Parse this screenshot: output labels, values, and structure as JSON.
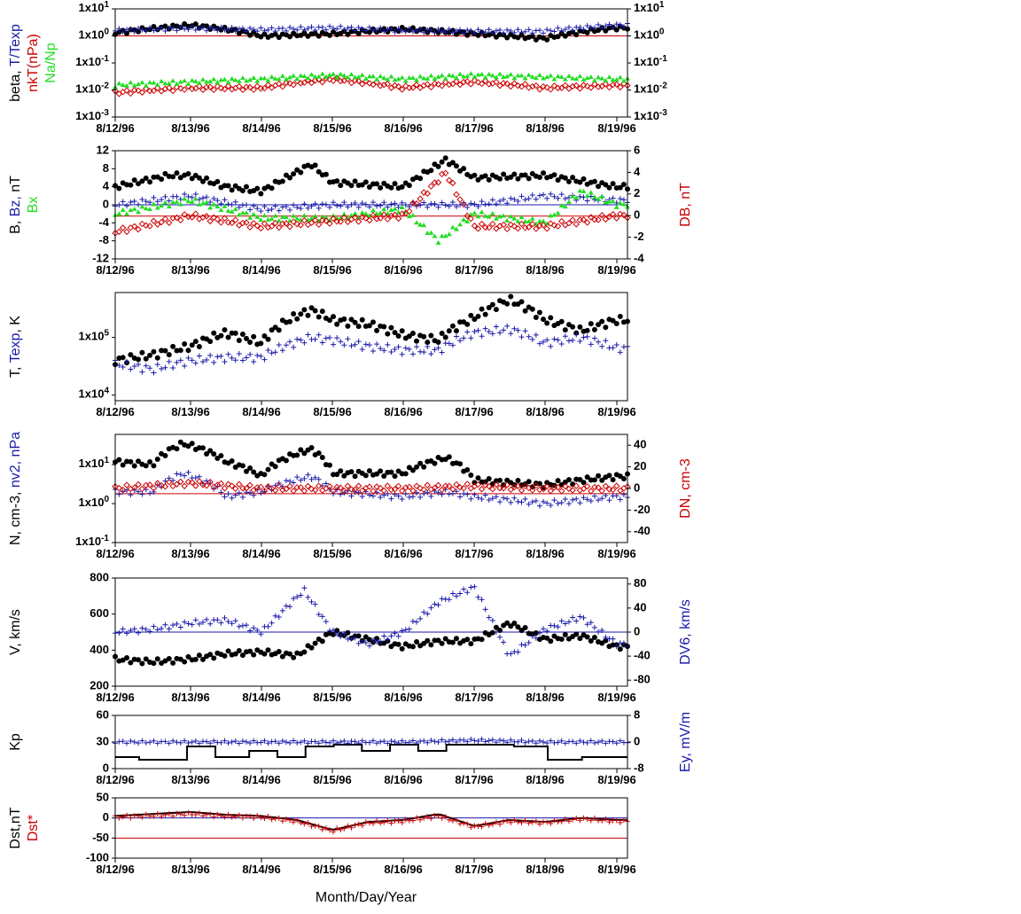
{
  "x_tick_labels": [
    "8/12/96",
    "8/13/96",
    "8/14/96",
    "8/15/96",
    "8/16/96",
    "8/17/96",
    "8/18/96",
    "8/19/96"
  ],
  "x_axis_title": "Month/Day/Year",
  "colors": {
    "black": "#000000",
    "blue": "#1a1aaa",
    "red": "#cc0000",
    "green": "#22dd22",
    "axis": "#000000"
  },
  "chart_data": [
    {
      "type": "scatter",
      "panel": "plasma beta",
      "y_scale": "log",
      "ylim": [
        0.001,
        10
      ],
      "left_ticks": [
        "1x10-3",
        "1x10-2",
        "1x10-1",
        "1x100",
        "1x101"
      ],
      "right_ticks": [
        "1x10-3",
        "1x10-2",
        "1x10-1",
        "1x100",
        "1x101"
      ],
      "left_label_parts": [
        {
          "text": "beta, ",
          "color": "black"
        },
        {
          "text": "T/Texp",
          "color": "blue"
        }
      ],
      "left_label2_parts": [
        {
          "text": "nkT(nPa)",
          "color": "red"
        }
      ],
      "left_label3_parts": [
        {
          "text": "Na/Np",
          "color": "green"
        }
      ],
      "reference_lines": [
        {
          "y": 1.0,
          "color": "red"
        }
      ],
      "series": [
        {
          "name": "beta",
          "marker": "dot",
          "color": "black",
          "x_days": [
            0,
            1,
            2,
            3,
            4,
            5,
            6,
            7
          ],
          "values": [
            1.3,
            2.5,
            1.0,
            1.2,
            1.8,
            1.2,
            0.8,
            2.0
          ]
        },
        {
          "name": "T/Texp",
          "marker": "plus",
          "color": "blue",
          "x_days": [
            0,
            1,
            2,
            3,
            4,
            5,
            6,
            7
          ],
          "values": [
            1.6,
            1.9,
            1.7,
            2.0,
            1.6,
            1.5,
            1.5,
            2.5
          ]
        },
        {
          "name": "nkT(nPa)",
          "marker": "diamond",
          "color": "red",
          "x_days": [
            0,
            1,
            2,
            3,
            4,
            5,
            6,
            7
          ],
          "values": [
            0.008,
            0.012,
            0.012,
            0.025,
            0.012,
            0.02,
            0.012,
            0.015
          ]
        },
        {
          "name": "Na/Np",
          "marker": "triangle",
          "color": "green",
          "x_days": [
            0,
            1,
            2,
            3,
            4,
            5,
            6,
            7
          ],
          "values": [
            0.015,
            0.02,
            0.025,
            0.035,
            0.025,
            0.035,
            0.03,
            0.025
          ]
        }
      ]
    },
    {
      "type": "scatter",
      "panel": "magnetic field",
      "ylim": [
        -12,
        12
      ],
      "left_ticks": [
        "-12",
        "-8",
        "-4",
        "0",
        "4",
        "8",
        "12"
      ],
      "right_ylim": [
        -4,
        6
      ],
      "right_ticks": [
        "-4",
        "-2",
        "0",
        "2",
        "4",
        "6"
      ],
      "left_label_parts": [
        {
          "text": "B, ",
          "color": "black"
        },
        {
          "text": "Bz, ",
          "color": "blue"
        },
        {
          "text": "nT",
          "color": "black"
        }
      ],
      "left_label2_parts": [
        {
          "text": "Bx",
          "color": "green"
        }
      ],
      "right_label_parts": [
        {
          "text": "DB, nT",
          "color": "red"
        }
      ],
      "reference_lines": [
        {
          "y": 0,
          "color": "blue"
        },
        {
          "y": -2.5,
          "color": "red"
        }
      ],
      "series": [
        {
          "name": "B",
          "marker": "dot",
          "color": "black",
          "x_days": [
            0,
            0.7,
            1,
            1.5,
            2,
            2.7,
            3,
            4,
            4.6,
            5,
            6,
            7
          ],
          "values": [
            4,
            6.5,
            6.5,
            4,
            3,
            9,
            5,
            4,
            10,
            6,
            6.5,
            4
          ]
        },
        {
          "name": "Bz",
          "marker": "plus",
          "color": "blue",
          "x_days": [
            0,
            1,
            2,
            3,
            4,
            5,
            6,
            7
          ],
          "values": [
            0,
            2,
            -1,
            0,
            0,
            0,
            2,
            1
          ]
        },
        {
          "name": "Bx",
          "marker": "triangle",
          "color": "green",
          "x_days": [
            0,
            1,
            2,
            3,
            4,
            4.5,
            5,
            6,
            6.5,
            7
          ],
          "values": [
            -2,
            1,
            -3,
            -3,
            -1,
            -8,
            -2,
            -4,
            3,
            0
          ]
        },
        {
          "name": "DB",
          "marker": "diamond",
          "color": "red",
          "axis": "right",
          "x_days": [
            0,
            1,
            2,
            3,
            4,
            4.6,
            5,
            6,
            7
          ],
          "values": [
            -1.5,
            0,
            -1,
            -0.5,
            0,
            4,
            -1,
            -1,
            0
          ]
        }
      ]
    },
    {
      "type": "scatter",
      "panel": "temperature",
      "y_scale": "log",
      "ylim": [
        8000,
        600000
      ],
      "left_ticks": [
        "1x104",
        "1x105"
      ],
      "left_label_parts": [
        {
          "text": "T, ",
          "color": "black"
        },
        {
          "text": "Texp",
          "color": "blue"
        },
        {
          "text": ", K",
          "color": "black"
        }
      ],
      "series": [
        {
          "name": "T",
          "marker": "dot",
          "color": "black",
          "x_days": [
            0,
            0.5,
            1,
            1.5,
            2,
            2.7,
            3,
            3.5,
            4,
            4.5,
            5,
            5.5,
            6,
            6.5,
            7
          ],
          "values": [
            40000,
            50000,
            70000,
            120000,
            80000,
            300000,
            200000,
            170000,
            110000,
            90000,
            220000,
            450000,
            200000,
            130000,
            200000
          ]
        },
        {
          "name": "Texp",
          "marker": "plus",
          "color": "blue",
          "x_days": [
            0,
            0.5,
            1,
            1.5,
            2,
            2.7,
            3,
            3.5,
            4,
            4.5,
            5,
            5.5,
            6,
            6.5,
            7
          ],
          "values": [
            35000,
            28000,
            40000,
            45000,
            45000,
            100000,
            90000,
            70000,
            60000,
            60000,
            120000,
            140000,
            80000,
            100000,
            65000
          ]
        }
      ]
    },
    {
      "type": "scatter",
      "panel": "density",
      "y_scale": "log",
      "ylim": [
        0.1,
        60
      ],
      "left_ticks": [
        "1x10-1",
        "1x100",
        "1x101"
      ],
      "right_ylim": [
        -50,
        50
      ],
      "right_ticks": [
        "-40",
        "-20",
        "0",
        "20",
        "40"
      ],
      "left_label_parts": [
        {
          "text": "N, cm-3, ",
          "color": "black"
        },
        {
          "text": "nv2, nPa",
          "color": "blue"
        }
      ],
      "right_label_parts": [
        {
          "text": "DN, cm-3",
          "color": "red"
        }
      ],
      "reference_lines": [
        {
          "y": 1.8,
          "color": "red"
        }
      ],
      "series": [
        {
          "name": "N",
          "marker": "dot",
          "color": "black",
          "x_days": [
            0,
            0.5,
            0.9,
            1.5,
            2,
            2.7,
            3,
            4,
            4.6,
            5,
            6,
            7
          ],
          "values": [
            12,
            10,
            35,
            12,
            5,
            25,
            6,
            6,
            15,
            4,
            3,
            5
          ]
        },
        {
          "name": "nv2",
          "marker": "plus",
          "color": "blue",
          "x_days": [
            0,
            0.5,
            0.9,
            1.5,
            2,
            2.7,
            3,
            4,
            4.6,
            5,
            6,
            7
          ],
          "values": [
            2,
            2,
            6,
            1.5,
            2,
            5,
            2,
            1.5,
            2,
            1.5,
            1,
            1.5
          ]
        },
        {
          "name": "DN",
          "marker": "diamond",
          "color": "red",
          "axis": "right",
          "x_days": [
            0,
            1,
            2,
            3,
            4,
            5,
            6,
            7
          ],
          "values": [
            0,
            5,
            0,
            0,
            0,
            2,
            0,
            0
          ]
        }
      ]
    },
    {
      "type": "scatter",
      "panel": "velocity",
      "ylim": [
        200,
        800
      ],
      "left_ticks": [
        "200",
        "400",
        "600",
        "800"
      ],
      "right_ylim": [
        -90,
        90
      ],
      "right_ticks": [
        "-80",
        "-40",
        "0",
        "40",
        "80"
      ],
      "left_label_parts": [
        {
          "text": "V, km/s",
          "color": "black"
        }
      ],
      "right_label_parts": [
        {
          "text": "DV6, km/s",
          "color": "blue"
        }
      ],
      "reference_lines": [
        {
          "y": 500,
          "color": "blue"
        }
      ],
      "series": [
        {
          "name": "V",
          "marker": "dot",
          "color": "black",
          "x_days": [
            0,
            0.5,
            1,
            1.5,
            2,
            2.5,
            3,
            3.5,
            4,
            4.5,
            5,
            5.5,
            6,
            6.5,
            7
          ],
          "values": [
            350,
            335,
            350,
            380,
            390,
            370,
            500,
            460,
            420,
            450,
            450,
            550,
            460,
            480,
            420
          ]
        },
        {
          "name": "DV6",
          "marker": "plus",
          "color": "blue",
          "axis": "right",
          "x_days": [
            0,
            0.5,
            1,
            1.5,
            2,
            2.6,
            3,
            3.5,
            4,
            4.5,
            5,
            5.5,
            6,
            6.5,
            7
          ],
          "values": [
            0,
            5,
            15,
            20,
            0,
            70,
            0,
            -20,
            0,
            50,
            75,
            -40,
            5,
            25,
            -20
          ]
        }
      ]
    },
    {
      "type": "line",
      "panel": "geomagnetic Kp",
      "ylim": [
        0,
        60
      ],
      "left_ticks": [
        "0",
        "30",
        "60"
      ],
      "right_ylim": [
        -8,
        8
      ],
      "right_ticks": [
        "-8",
        "0",
        "8"
      ],
      "left_label_parts": [
        {
          "text": "Kp",
          "color": "black"
        }
      ],
      "right_label_parts": [
        {
          "text": "Ey,  mV/m",
          "color": "blue"
        }
      ],
      "series": [
        {
          "name": "Kp",
          "marker": "step",
          "color": "black",
          "x_days": [
            0,
            0.3,
            0.9,
            1.3,
            1.8,
            2.2,
            2.6,
            3,
            3.4,
            3.8,
            4.2,
            4.6,
            5,
            5.5,
            6,
            6.5,
            7
          ],
          "values": [
            13,
            10,
            25,
            13,
            20,
            13,
            25,
            27,
            20,
            27,
            20,
            27,
            27,
            25,
            10,
            13,
            13
          ]
        },
        {
          "name": "Ey",
          "marker": "plus",
          "color": "blue",
          "axis": "right",
          "x_days": [
            0,
            1,
            2,
            3,
            4,
            5,
            6,
            7
          ],
          "values": [
            0,
            0,
            0,
            0,
            0,
            0.5,
            0,
            0
          ]
        }
      ]
    },
    {
      "type": "line",
      "panel": "Dst index",
      "ylim": [
        -100,
        50
      ],
      "left_ticks": [
        "-100",
        "-50",
        "0",
        "50"
      ],
      "left_label_parts": [
        {
          "text": "Dst,nT",
          "color": "black"
        }
      ],
      "left_label2_parts": [
        {
          "text": "Dst*",
          "color": "red"
        }
      ],
      "reference_lines": [
        {
          "y": 0,
          "color": "blue"
        },
        {
          "y": -50,
          "color": "red"
        }
      ],
      "series": [
        {
          "name": "Dst",
          "marker": "line",
          "color": "black",
          "x_days": [
            0,
            0.5,
            1,
            1.5,
            2,
            2.5,
            3,
            3.5,
            4,
            4.5,
            5,
            5.5,
            6,
            6.5,
            7
          ],
          "values": [
            5,
            10,
            15,
            8,
            5,
            -5,
            -30,
            -10,
            -5,
            10,
            -20,
            -5,
            -10,
            0,
            -5
          ]
        },
        {
          "name": "Dst*",
          "marker": "plus",
          "color": "red",
          "x_days": [
            0,
            0.5,
            1,
            1.5,
            2,
            2.5,
            3,
            3.5,
            4,
            4.5,
            5,
            5.5,
            6,
            6.5,
            7
          ],
          "values": [
            2,
            6,
            10,
            5,
            2,
            -8,
            -32,
            -12,
            -8,
            5,
            -22,
            -8,
            -12,
            -2,
            -8
          ]
        }
      ]
    }
  ]
}
